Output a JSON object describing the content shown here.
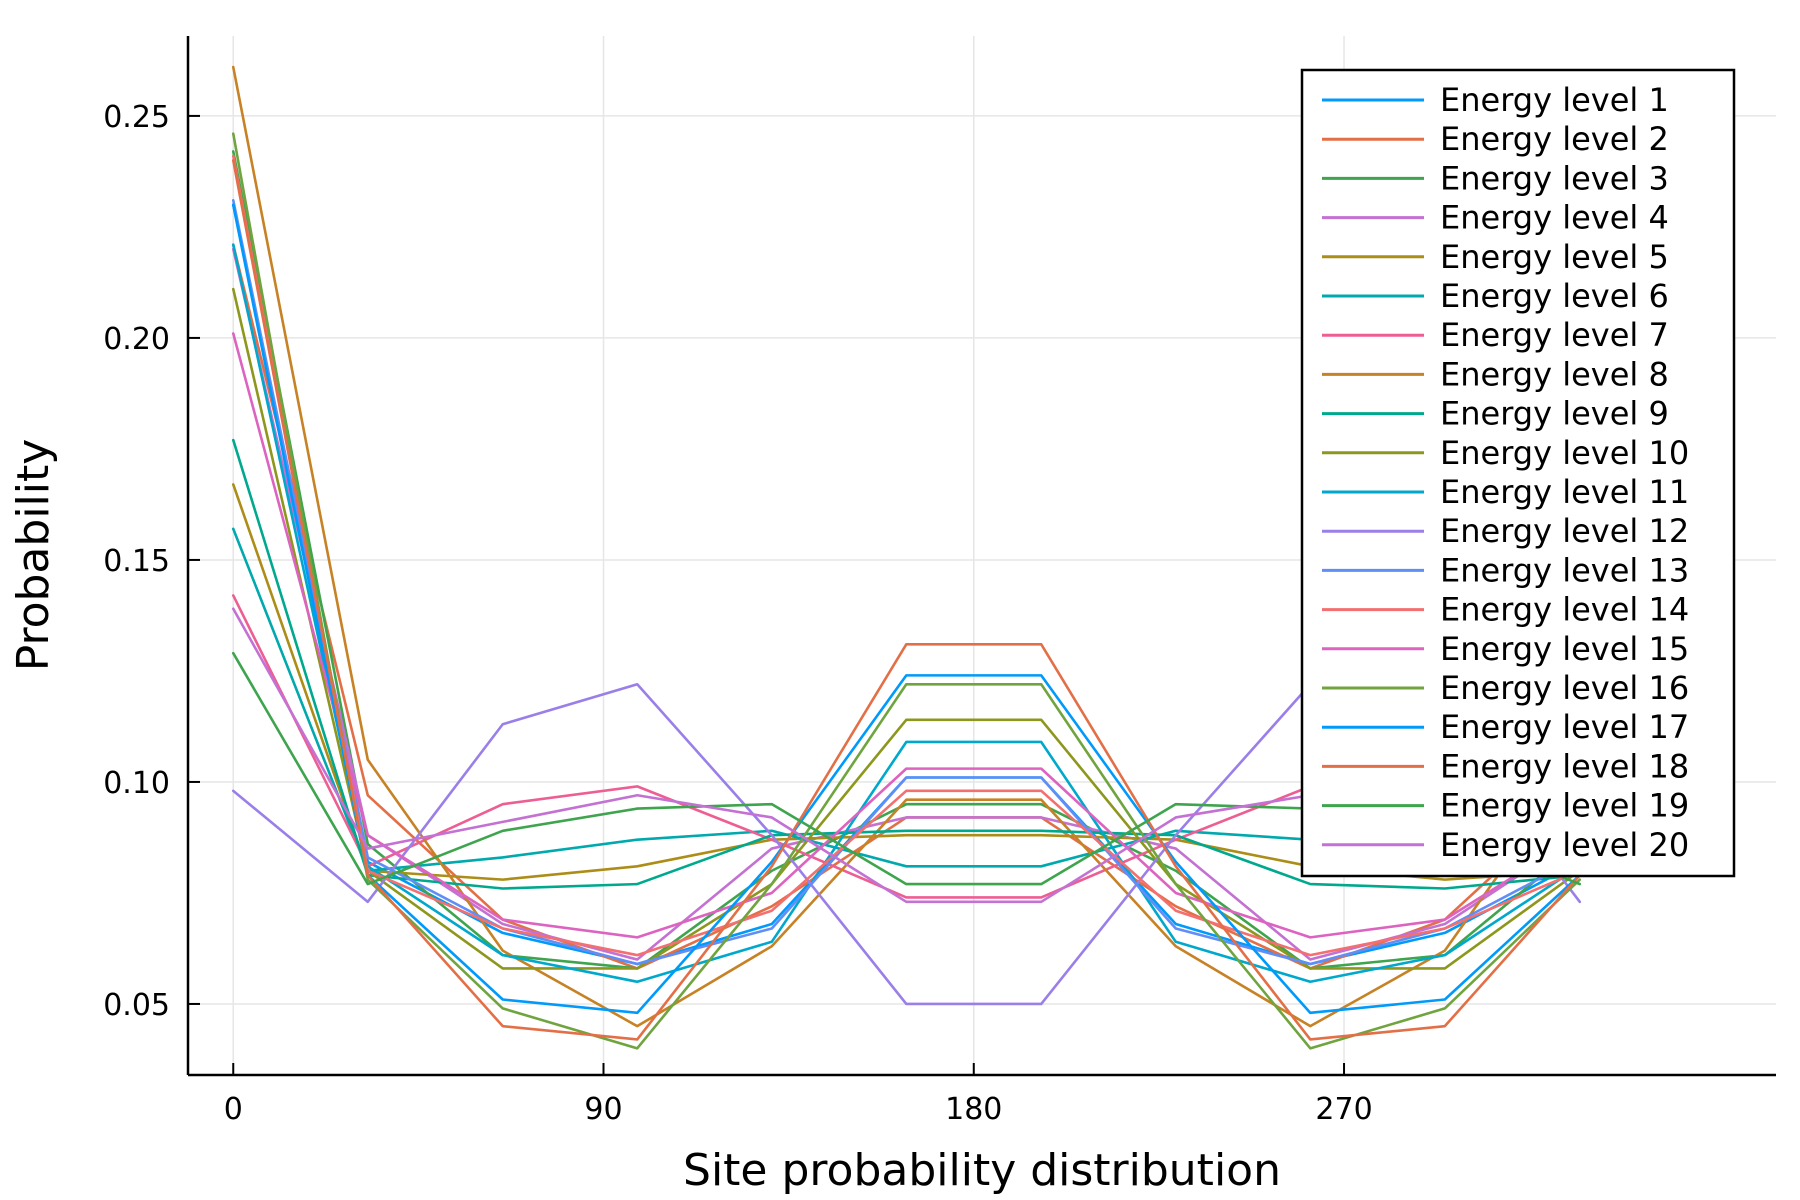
{
  "chart_data": {
    "type": "line",
    "xlabel": "Site probability distribution",
    "ylabel": "Probability",
    "xlim": [
      -11,
      375
    ],
    "ylim": [
      0.034,
      0.268
    ],
    "xticks": [
      0,
      90,
      180,
      270
    ],
    "xtick_labels": [
      "0",
      "90",
      "180",
      "270"
    ],
    "yticks": [
      0.05,
      0.1,
      0.15,
      0.2,
      0.25
    ],
    "ytick_labels": [
      "0.05",
      "0.10",
      "0.15",
      "0.20",
      "0.25"
    ],
    "grid": true,
    "legend_position": "top-right",
    "x": [
      0,
      32.7,
      65.5,
      98.2,
      130.9,
      163.6,
      196.4,
      229.1,
      261.8,
      294.5,
      327.3
    ],
    "series": [
      {
        "name": "Energy level 1",
        "color": "#009AFA",
        "values": [
          0.23,
          0.082,
          0.066,
          0.059,
          0.068,
          0.101,
          0.101,
          0.068,
          0.059,
          0.066,
          0.082
        ]
      },
      {
        "name": "Energy level 2",
        "color": "#E36F47",
        "values": [
          0.221,
          0.097,
          0.069,
          0.058,
          0.072,
          0.092,
          0.092,
          0.072,
          0.058,
          0.069,
          0.097
        ]
      },
      {
        "name": "Energy level 3",
        "color": "#3EA44E",
        "values": [
          0.242,
          0.086,
          0.061,
          0.058,
          0.08,
          0.095,
          0.095,
          0.08,
          0.058,
          0.061,
          0.086
        ]
      },
      {
        "name": "Energy level 4",
        "color": "#C371D2",
        "values": [
          0.22,
          0.088,
          0.068,
          0.06,
          0.085,
          0.092,
          0.092,
          0.085,
          0.06,
          0.068,
          0.088
        ]
      },
      {
        "name": "Energy level 5",
        "color": "#AC8D18",
        "values": [
          0.167,
          0.08,
          0.078,
          0.081,
          0.087,
          0.088,
          0.088,
          0.087,
          0.081,
          0.078,
          0.08
        ]
      },
      {
        "name": "Energy level 6",
        "color": "#00A9AD",
        "values": [
          0.157,
          0.08,
          0.083,
          0.087,
          0.089,
          0.081,
          0.081,
          0.089,
          0.087,
          0.083,
          0.08
        ]
      },
      {
        "name": "Energy level 7",
        "color": "#ED5E93",
        "values": [
          0.142,
          0.081,
          0.095,
          0.099,
          0.087,
          0.074,
          0.074,
          0.087,
          0.099,
          0.095,
          0.081
        ]
      },
      {
        "name": "Energy level 8",
        "color": "#C68225",
        "values": [
          0.261,
          0.105,
          0.062,
          0.045,
          0.063,
          0.096,
          0.096,
          0.063,
          0.045,
          0.062,
          0.105
        ]
      },
      {
        "name": "Energy level 9",
        "color": "#00A98D",
        "values": [
          0.177,
          0.079,
          0.076,
          0.077,
          0.088,
          0.089,
          0.089,
          0.088,
          0.077,
          0.076,
          0.079
        ]
      },
      {
        "name": "Energy level 10",
        "color": "#8E971D",
        "values": [
          0.211,
          0.08,
          0.058,
          0.058,
          0.077,
          0.114,
          0.114,
          0.077,
          0.058,
          0.058,
          0.08
        ]
      },
      {
        "name": "Energy level 11",
        "color": "#00A8CB",
        "values": [
          0.221,
          0.081,
          0.061,
          0.055,
          0.064,
          0.109,
          0.109,
          0.064,
          0.055,
          0.061,
          0.081
        ]
      },
      {
        "name": "Energy level 12",
        "color": "#9B7FE9",
        "values": [
          0.098,
          0.073,
          0.113,
          0.122,
          0.088,
          0.05,
          0.05,
          0.088,
          0.122,
          0.113,
          0.073
        ]
      },
      {
        "name": "Energy level 13",
        "color": "#618DF6",
        "values": [
          0.231,
          0.083,
          0.067,
          0.059,
          0.067,
          0.101,
          0.101,
          0.067,
          0.059,
          0.067,
          0.083
        ]
      },
      {
        "name": "Energy level 14",
        "color": "#F36F70",
        "values": [
          0.241,
          0.08,
          0.067,
          0.061,
          0.071,
          0.098,
          0.098,
          0.071,
          0.061,
          0.067,
          0.08
        ]
      },
      {
        "name": "Energy level 15",
        "color": "#DD63C0",
        "values": [
          0.201,
          0.088,
          0.069,
          0.065,
          0.075,
          0.103,
          0.103,
          0.075,
          0.065,
          0.069,
          0.088
        ]
      },
      {
        "name": "Energy level 16",
        "color": "#6FA43F",
        "values": [
          0.246,
          0.078,
          0.049,
          0.04,
          0.077,
          0.122,
          0.122,
          0.077,
          0.04,
          0.049,
          0.078
        ]
      },
      {
        "name": "Energy level 17",
        "color": "#009AFA",
        "values": [
          0.23,
          0.079,
          0.051,
          0.048,
          0.082,
          0.124,
          0.124,
          0.082,
          0.048,
          0.051,
          0.079
        ]
      },
      {
        "name": "Energy level 18",
        "color": "#E36F47",
        "values": [
          0.24,
          0.079,
          0.045,
          0.042,
          0.081,
          0.131,
          0.131,
          0.081,
          0.042,
          0.045,
          0.079
        ]
      },
      {
        "name": "Energy level 19",
        "color": "#3EA44E",
        "values": [
          0.129,
          0.077,
          0.089,
          0.094,
          0.095,
          0.077,
          0.077,
          0.095,
          0.094,
          0.089,
          0.077
        ]
      },
      {
        "name": "Energy level 20",
        "color": "#C371D2",
        "values": [
          0.139,
          0.085,
          0.091,
          0.097,
          0.092,
          0.073,
          0.073,
          0.092,
          0.097,
          0.091,
          0.085
        ]
      }
    ]
  }
}
